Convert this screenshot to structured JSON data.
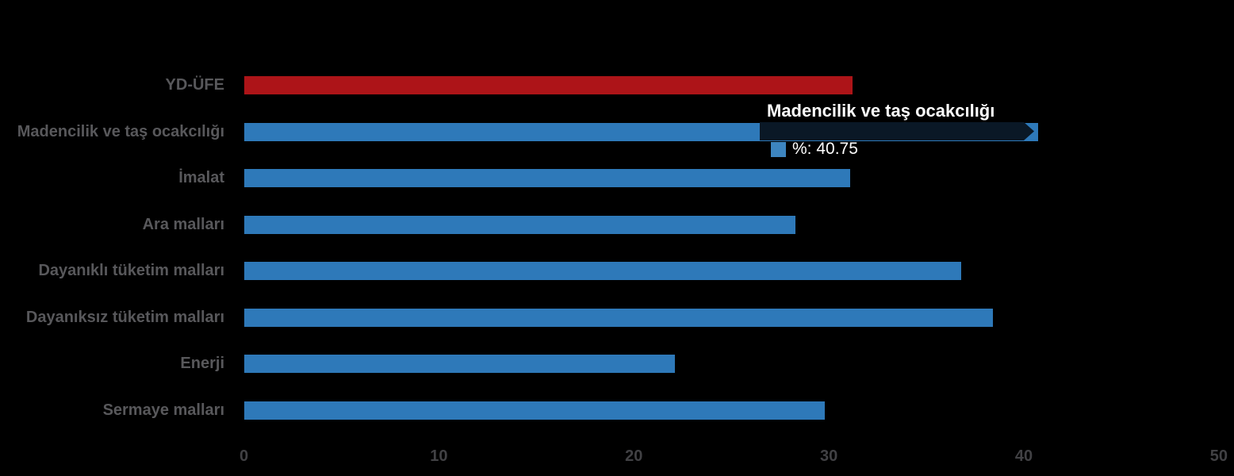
{
  "chart_data": {
    "type": "bar",
    "orientation": "horizontal",
    "title": "",
    "xlabel": "",
    "ylabel": "",
    "categories": [
      "YD-ÜFE",
      "Madencilik ve taş ocakcılığı",
      "İmalat",
      "Ara malları",
      "Dayanıklı tüketim malları",
      "Dayanıksız tüketim malları",
      "Enerji",
      "Sermaye malları"
    ],
    "values": [
      31.2,
      40.75,
      31.1,
      28.3,
      36.8,
      38.4,
      22.1,
      29.8
    ],
    "bar_colors": [
      "#AD1418",
      "#2E79B9",
      "#2E79B9",
      "#2E79B9",
      "#2E79B9",
      "#2E79B9",
      "#2E79B9",
      "#2E79B9"
    ],
    "xlim": [
      0,
      50
    ],
    "x_ticks": [
      "0",
      "10",
      "20",
      "30",
      "40",
      "50"
    ],
    "grid": false,
    "legend": false,
    "background": "#000000"
  },
  "tooltip": {
    "title": "Madencilik ve taş ocakcılığı",
    "value_label": "%: 40.75",
    "target_category": "Madencilik ve taş ocakcılığı",
    "swatch_color": "#3D85C0",
    "background_color": "#0A1826",
    "text_color": "#FFFFFF"
  },
  "colors": {
    "category_label": "#58585B",
    "tick_label": "#414144"
  }
}
